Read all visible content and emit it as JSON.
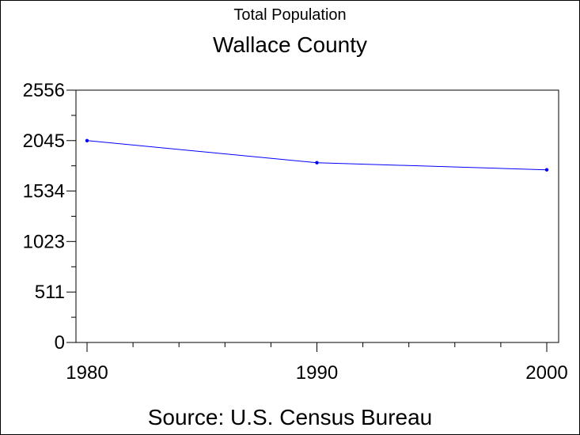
{
  "chart_data": {
    "type": "line",
    "title": "Total Population",
    "subtitle": "Wallace County",
    "source": "Source: U.S. Census Bureau",
    "x": [
      1980,
      1990,
      2000
    ],
    "x_ticks": [
      "1980",
      "1990",
      "2000"
    ],
    "xlim": [
      1980,
      2000
    ],
    "y_ticks": [
      0,
      511,
      1023,
      1534,
      2045,
      2556
    ],
    "ylim": [
      0,
      2556
    ],
    "series": [
      {
        "values": [
          2045,
          1821,
          1749
        ],
        "color": "#0000ff"
      }
    ],
    "grid": false
  }
}
